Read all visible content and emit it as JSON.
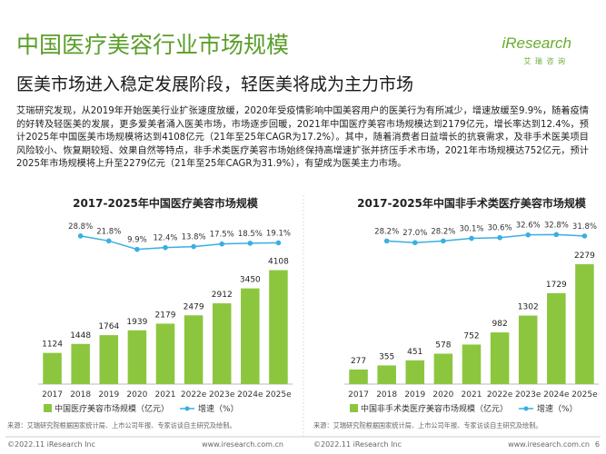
{
  "header": {
    "title": "中国医疗美容行业市场规模",
    "subtitle": "医美市场进入稳定发展阶段，轻医美将成为主力市场",
    "logo": "iResearch",
    "logo_sub": "艾 瑞 咨 询"
  },
  "body": "艾瑞研究发现，从2019年开始医美行业扩张速度放缓，2020年受疫情影响中国美容用户的医美行为有所减少，增速放缓至9.9%，随着疫情的好转及轻医美的发展，更多爱美者涌入医美市场，市场逐步回暖，2021年中国医疗美容市场规模达到2179亿元，增长率达到12.4%，预计2025年中国医美市场规模将达到4108亿元（21年至25年CAGR为17.2%）。其中，随着消费者日益增长的抗衰需求，及非手术医美项目风险较小、恢复期较短、效果自然等特点，非手术类医疗美容市场始终保持高增速扩张并挤压手术市场，2021年市场规模达752亿元，预计2025年市场规模将上升至2279亿元（21年至25年CAGR为31.9%），有望成为医美主力市场。",
  "chart_data": [
    {
      "type": "bar",
      "title": "2017-2025年中国医疗美容市场规模",
      "categories": [
        "2017",
        "2018",
        "2019",
        "2020",
        "2021",
        "2022e",
        "2023e",
        "2024e",
        "2025e"
      ],
      "series": [
        {
          "name": "中国医疗美容市场规模（亿元）",
          "color": "#8cc63f",
          "values": [
            1124,
            1448,
            1764,
            1939,
            2179,
            2479,
            2912,
            3450,
            4108
          ]
        },
        {
          "name": "增速（%）",
          "color": "#3aaee3",
          "type": "line",
          "axis": "y2",
          "values": [
            null,
            28.8,
            21.8,
            9.9,
            12.4,
            13.8,
            17.5,
            18.5,
            19.1
          ],
          "value_labels": [
            null,
            "28.8%",
            "21.8%",
            "9.9%",
            "12.4%",
            "13.8%",
            "17.5%",
            "18.5%",
            "19.1%"
          ]
        }
      ],
      "ylim": [
        0,
        5500
      ],
      "y2lim": [
        -180,
        35
      ],
      "source": "来源：艾瑞研究院根据国家统计局、上市公司年报、专家访谈自主研究及绘制。"
    },
    {
      "type": "bar",
      "title": "2017-2025年中国非手术类医疗美容市场规模",
      "categories": [
        "2017",
        "2018",
        "2019",
        "2020",
        "2021",
        "2022e",
        "2023e",
        "2024e",
        "2025e"
      ],
      "series": [
        {
          "name": "中国非手术类医疗美容市场规模（亿元）",
          "color": "#8cc63f",
          "values": [
            277,
            355,
            451,
            578,
            752,
            982,
            1302,
            1729,
            2279
          ]
        },
        {
          "name": "增速（%）",
          "color": "#3aaee3",
          "type": "line",
          "axis": "y2",
          "values": [
            null,
            28.2,
            27.0,
            28.2,
            30.1,
            30.6,
            32.6,
            32.8,
            31.8
          ],
          "value_labels": [
            null,
            "28.2%",
            "27.0%",
            "28.2%",
            "30.1%",
            "30.6%",
            "32.6%",
            "32.8%",
            "31.8%"
          ]
        }
      ],
      "ylim": [
        0,
        2900
      ],
      "y2lim": [
        -75,
        35
      ],
      "source": "来源：艾瑞研究院根据国家统计局、上市公司年报、专家访谈自主研究及绘制。"
    }
  ],
  "footer": [
    {
      "copyright": "©2022.11 iResearch Inc",
      "url": "www.iresearch.com.cn"
    },
    {
      "copyright": "©2022.11 iResearch Inc",
      "url": "www.iresearch.com.cn"
    }
  ],
  "page_number": "6"
}
